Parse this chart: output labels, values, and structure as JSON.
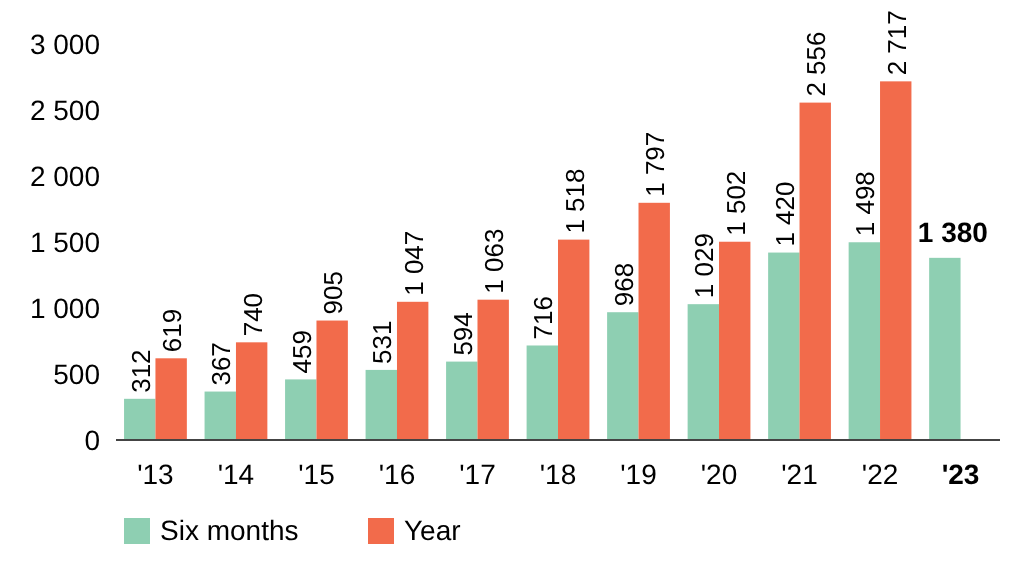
{
  "chart_data": {
    "type": "bar",
    "categories": [
      "'13",
      "'14",
      "'15",
      "'16",
      "'17",
      "'18",
      "'19",
      "'20",
      "'21",
      "'22",
      "'23"
    ],
    "series": [
      {
        "name": "Six months",
        "color": "#8ecfb2",
        "values": [
          312,
          367,
          459,
          531,
          594,
          716,
          968,
          1029,
          1420,
          1498,
          1380
        ],
        "value_labels": [
          "312",
          "367",
          "459",
          "531",
          "594",
          "716",
          "968",
          "1 029",
          "1 420",
          "1 498",
          "1 380"
        ]
      },
      {
        "name": "Year",
        "color": "#f26b4b",
        "values": [
          619,
          740,
          905,
          1047,
          1063,
          1518,
          1797,
          1502,
          2556,
          2717,
          null
        ],
        "value_labels": [
          "619",
          "740",
          "905",
          "1 047",
          "1 063",
          "1 518",
          "1 797",
          "1 502",
          "2 556",
          "2 717",
          null
        ]
      }
    ],
    "ylim": [
      0,
      3000
    ],
    "yticks": [
      0,
      500,
      {
        "value": 1000,
        "label": "1 000"
      },
      {
        "value": 1500,
        "label": "1 500"
      },
      {
        "value": 2000,
        "label": "2 000"
      },
      {
        "value": 2500,
        "label": "2 500"
      },
      {
        "value": 3000,
        "label": "3 000"
      }
    ],
    "grid": false,
    "legend": "bottom left"
  }
}
